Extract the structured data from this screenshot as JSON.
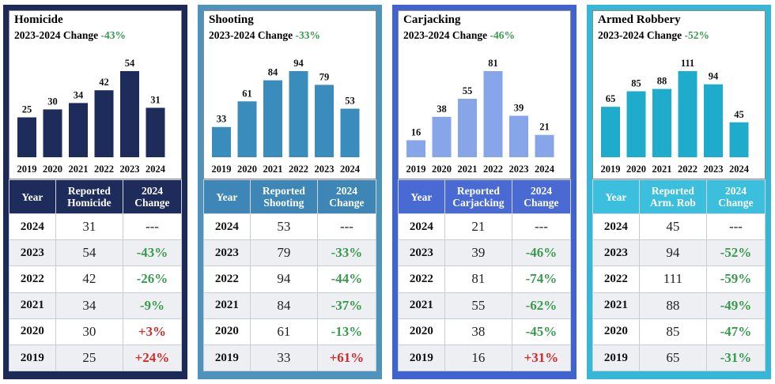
{
  "colors": {
    "negative": "#3a9a4e",
    "positive": "#d42a2a",
    "neutral": "#222222"
  },
  "panels": [
    {
      "title": "Homicide",
      "sub_label": "2023-2024 Change",
      "sub_pct": "-43%",
      "theme": {
        "frame": "#1b2a57",
        "bar": "#1e2c5b",
        "header": "#1e2c5b",
        "alt": "#eceef2"
      },
      "columns": {
        "year": "Year",
        "reported": "Reported Homicide",
        "change": "2024 Change"
      },
      "rows": [
        {
          "year": "2024",
          "count": "31",
          "change": "---",
          "type": "neutral"
        },
        {
          "year": "2023",
          "count": "54",
          "change": "-43%",
          "type": "negative"
        },
        {
          "year": "2022",
          "count": "42",
          "change": "-26%",
          "type": "negative"
        },
        {
          "year": "2021",
          "count": "34",
          "change": "-9%",
          "type": "negative"
        },
        {
          "year": "2020",
          "count": "30",
          "change": "+3%",
          "type": "positive"
        },
        {
          "year": "2019",
          "count": "25",
          "change": "+24%",
          "type": "positive"
        }
      ]
    },
    {
      "title": "Shooting",
      "sub_label": "2023-2024 Change",
      "sub_pct": "-33%",
      "theme": {
        "frame": "#4e93bb",
        "bar": "#3a8cbc",
        "header": "#3d86b5",
        "alt": "#eceef2"
      },
      "columns": {
        "year": "Year",
        "reported": "Reported Shooting",
        "change": "2024 Change"
      },
      "rows": [
        {
          "year": "2024",
          "count": "53",
          "change": "---",
          "type": "neutral"
        },
        {
          "year": "2023",
          "count": "79",
          "change": "-33%",
          "type": "negative"
        },
        {
          "year": "2022",
          "count": "94",
          "change": "-44%",
          "type": "negative"
        },
        {
          "year": "2021",
          "count": "84",
          "change": "-37%",
          "type": "negative"
        },
        {
          "year": "2020",
          "count": "61",
          "change": "-13%",
          "type": "negative"
        },
        {
          "year": "2019",
          "count": "33",
          "change": "+61%",
          "type": "positive"
        }
      ]
    },
    {
      "title": "Carjacking",
      "sub_label": "2023-2024 Change",
      "sub_pct": "-46%",
      "theme": {
        "frame": "#3f63cf",
        "bar": "#87a6e9",
        "header": "#4a6ad3",
        "alt": "#eceef2"
      },
      "columns": {
        "year": "Year",
        "reported": "Reported Carjacking",
        "change": "2024 Change"
      },
      "rows": [
        {
          "year": "2024",
          "count": "21",
          "change": "---",
          "type": "neutral"
        },
        {
          "year": "2023",
          "count": "39",
          "change": "-46%",
          "type": "negative"
        },
        {
          "year": "2022",
          "count": "81",
          "change": "-74%",
          "type": "negative"
        },
        {
          "year": "2021",
          "count": "55",
          "change": "-62%",
          "type": "negative"
        },
        {
          "year": "2020",
          "count": "38",
          "change": "-45%",
          "type": "negative"
        },
        {
          "year": "2019",
          "count": "16",
          "change": "+31%",
          "type": "positive"
        }
      ]
    },
    {
      "title": "Armed Robbery",
      "sub_label": "2023-2024 Change",
      "sub_pct": "-52%",
      "theme": {
        "frame": "#36b7d8",
        "bar": "#1faccc",
        "header": "#3bbfdc",
        "alt": "#eceef2"
      },
      "columns": {
        "year": "Year",
        "reported": "Reported Arm. Rob",
        "change": "2024 Change"
      },
      "rows": [
        {
          "year": "2024",
          "count": "45",
          "change": "---",
          "type": "neutral"
        },
        {
          "year": "2023",
          "count": "94",
          "change": "-52%",
          "type": "negative"
        },
        {
          "year": "2022",
          "count": "111",
          "change": "-59%",
          "type": "negative"
        },
        {
          "year": "2021",
          "count": "88",
          "change": "-49%",
          "type": "negative"
        },
        {
          "year": "2020",
          "count": "85",
          "change": "-47%",
          "type": "negative"
        },
        {
          "year": "2019",
          "count": "65",
          "change": "-31%",
          "type": "negative"
        }
      ]
    }
  ],
  "chart_data": [
    {
      "type": "bar",
      "title": "Homicide",
      "subtitle": "2023-2024 Change -43%",
      "categories": [
        "2019",
        "2020",
        "2021",
        "2022",
        "2023",
        "2024"
      ],
      "values": [
        25,
        30,
        34,
        42,
        54,
        31
      ],
      "ylim": [
        0,
        54
      ]
    },
    {
      "type": "bar",
      "title": "Shooting",
      "subtitle": "2023-2024 Change -33%",
      "categories": [
        "2019",
        "2020",
        "2021",
        "2022",
        "2023",
        "2024"
      ],
      "values": [
        33,
        61,
        84,
        94,
        79,
        53
      ],
      "ylim": [
        0,
        94
      ]
    },
    {
      "type": "bar",
      "title": "Carjacking",
      "subtitle": "2023-2024 Change -46%",
      "categories": [
        "2019",
        "2020",
        "2021",
        "2022",
        "2023",
        "2024"
      ],
      "values": [
        16,
        38,
        55,
        81,
        39,
        21
      ],
      "ylim": [
        0,
        81
      ]
    },
    {
      "type": "bar",
      "title": "Armed Robbery",
      "subtitle": "2023-2024 Change -52%",
      "categories": [
        "2019",
        "2020",
        "2021",
        "2022",
        "2023",
        "2024"
      ],
      "values": [
        65,
        85,
        88,
        111,
        94,
        45
      ],
      "ylim": [
        0,
        111
      ]
    }
  ]
}
